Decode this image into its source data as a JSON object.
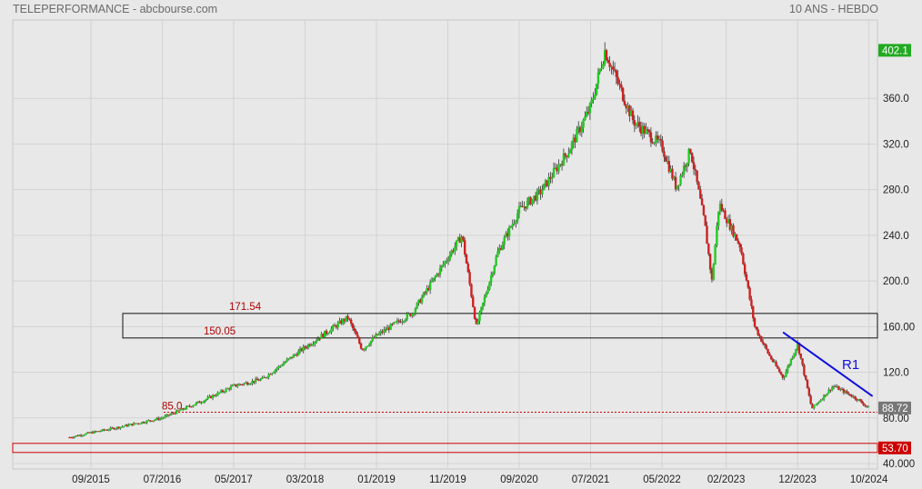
{
  "header": {
    "title": "TELEPERFORMANCE - abcbourse.com",
    "period": "10 ANS - HEBDO"
  },
  "chart_data": {
    "type": "candlestick",
    "title": "TELEPERFORMANCE - abcbourse.com",
    "subtitle": "10 ANS - HEBDO",
    "ylim": [
      40,
      410
    ],
    "y_ticks": [
      {
        "value": 40,
        "label": "40.000"
      },
      {
        "value": 80,
        "label": "80.00"
      },
      {
        "value": 120,
        "label": "120.0"
      },
      {
        "value": 160,
        "label": "160.00"
      },
      {
        "value": 200,
        "label": "200.0"
      },
      {
        "value": 240,
        "label": "240.0"
      },
      {
        "value": 280,
        "label": "280.0"
      },
      {
        "value": 320,
        "label": "320.0"
      },
      {
        "value": 360,
        "label": "360.0"
      }
    ],
    "x_ticks": [
      "09/2015",
      "07/2016",
      "05/2017",
      "03/2018",
      "01/2019",
      "11/2019",
      "09/2020",
      "07/2021",
      "05/2022",
      "02/2023",
      "12/2023",
      "10/2024"
    ],
    "grid": true,
    "colors": {
      "up": "#22cc22",
      "down": "#cc2222",
      "trendline": "#1010e0",
      "level": "#cc0000"
    },
    "price_path": [
      [
        "06/2015",
        63
      ],
      [
        "09/2015",
        67
      ],
      [
        "01/2016",
        72
      ],
      [
        "07/2016",
        80
      ],
      [
        "01/2017",
        96
      ],
      [
        "05/2017",
        108
      ],
      [
        "09/2017",
        114
      ],
      [
        "03/2018",
        142
      ],
      [
        "09/2018",
        168
      ],
      [
        "11/2018",
        140
      ],
      [
        "01/2019",
        152
      ],
      [
        "06/2019",
        172
      ],
      [
        "01/2020",
        240
      ],
      [
        "03/2020",
        160
      ],
      [
        "06/2020",
        225
      ],
      [
        "09/2020",
        262
      ],
      [
        "12/2020",
        278
      ],
      [
        "04/2021",
        315
      ],
      [
        "07/2021",
        352
      ],
      [
        "09/2021",
        402
      ],
      [
        "01/2022",
        340
      ],
      [
        "05/2022",
        318
      ],
      [
        "07/2022",
        282
      ],
      [
        "09/2022",
        315
      ],
      [
        "11/2022",
        250
      ],
      [
        "12/2022",
        200
      ],
      [
        "01/2023",
        268
      ],
      [
        "04/2023",
        230
      ],
      [
        "06/2023",
        160
      ],
      [
        "08/2023",
        135
      ],
      [
        "10/2023",
        115
      ],
      [
        "12/2023",
        145
      ],
      [
        "02/2024",
        88
      ],
      [
        "05/2024",
        108
      ],
      [
        "08/2024",
        98
      ],
      [
        "10/2024",
        88.72
      ]
    ],
    "levels": [
      {
        "label": "171.54",
        "value": 171.54,
        "style": "box-top"
      },
      {
        "label": "150.05",
        "value": 150.05,
        "style": "box-bottom"
      },
      {
        "label": "85.0",
        "value": 85,
        "style": "dotted"
      },
      {
        "label": "53.70",
        "value": 53.7,
        "style": "box"
      }
    ],
    "annotations": [
      {
        "label": "R1",
        "type": "trendline",
        "from": [
          "12/2023",
          155
        ],
        "to": [
          "10/2024",
          99
        ]
      }
    ],
    "price_tags": [
      {
        "label": "402.1",
        "value": 402.1,
        "color": "#22aa22",
        "text_color": "#ffffff"
      },
      {
        "label": "88.72",
        "value": 88.72,
        "color": "#777777",
        "text_color": "#ffffff"
      },
      {
        "label": "53.70",
        "value": 53.7,
        "color": "#cc0000",
        "text_color": "#ffffff"
      }
    ]
  }
}
